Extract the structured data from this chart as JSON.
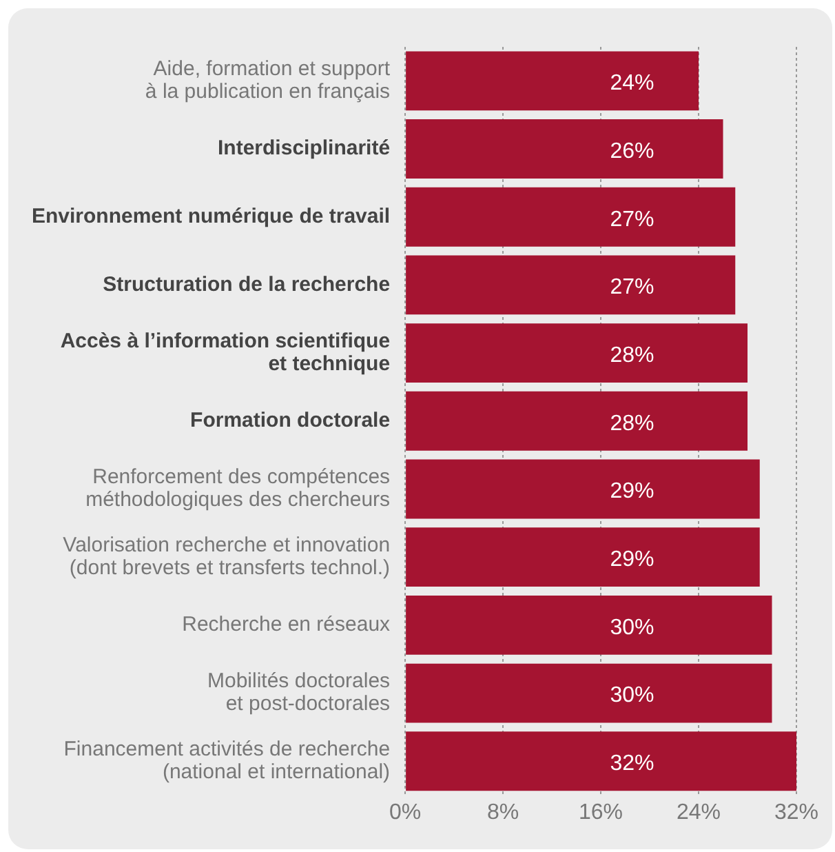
{
  "chart_data": {
    "type": "bar",
    "orientation": "horizontal",
    "categories": [
      "Aide, formation et support\nà la publication en français",
      "Interdisciplinarité",
      "Environnement numérique de travail",
      "Structuration de la recherche",
      "Accès à l’information scientifique\net technique",
      "Formation doctorale",
      "Renforcement des compétences\nméthodologiques des chercheurs",
      "Valorisation recherche et innovation\n(dont brevets et transferts technol.)",
      "Recherche en réseaux",
      "Mobilités doctorales\net post-doctorales",
      "Financement activités de recherche\n(national et international)"
    ],
    "values": [
      24,
      26,
      27,
      27,
      28,
      28,
      29,
      29,
      30,
      30,
      32
    ],
    "color": "#a51431",
    "value_labels": [
      "24%",
      "26%",
      "27%",
      "27%",
      "28%",
      "28%",
      "29%",
      "29%",
      "30%",
      "30%",
      "32%"
    ],
    "xlim": [
      0,
      32
    ],
    "xticks": [
      {
        "value": 0,
        "label": "0%"
      },
      {
        "value": 8,
        "label": "8%"
      },
      {
        "value": 16,
        "label": "16%"
      },
      {
        "value": 24,
        "label": "24%"
      },
      {
        "value": 32,
        "label": "32%"
      }
    ],
    "grid": "x",
    "legend": false
  }
}
